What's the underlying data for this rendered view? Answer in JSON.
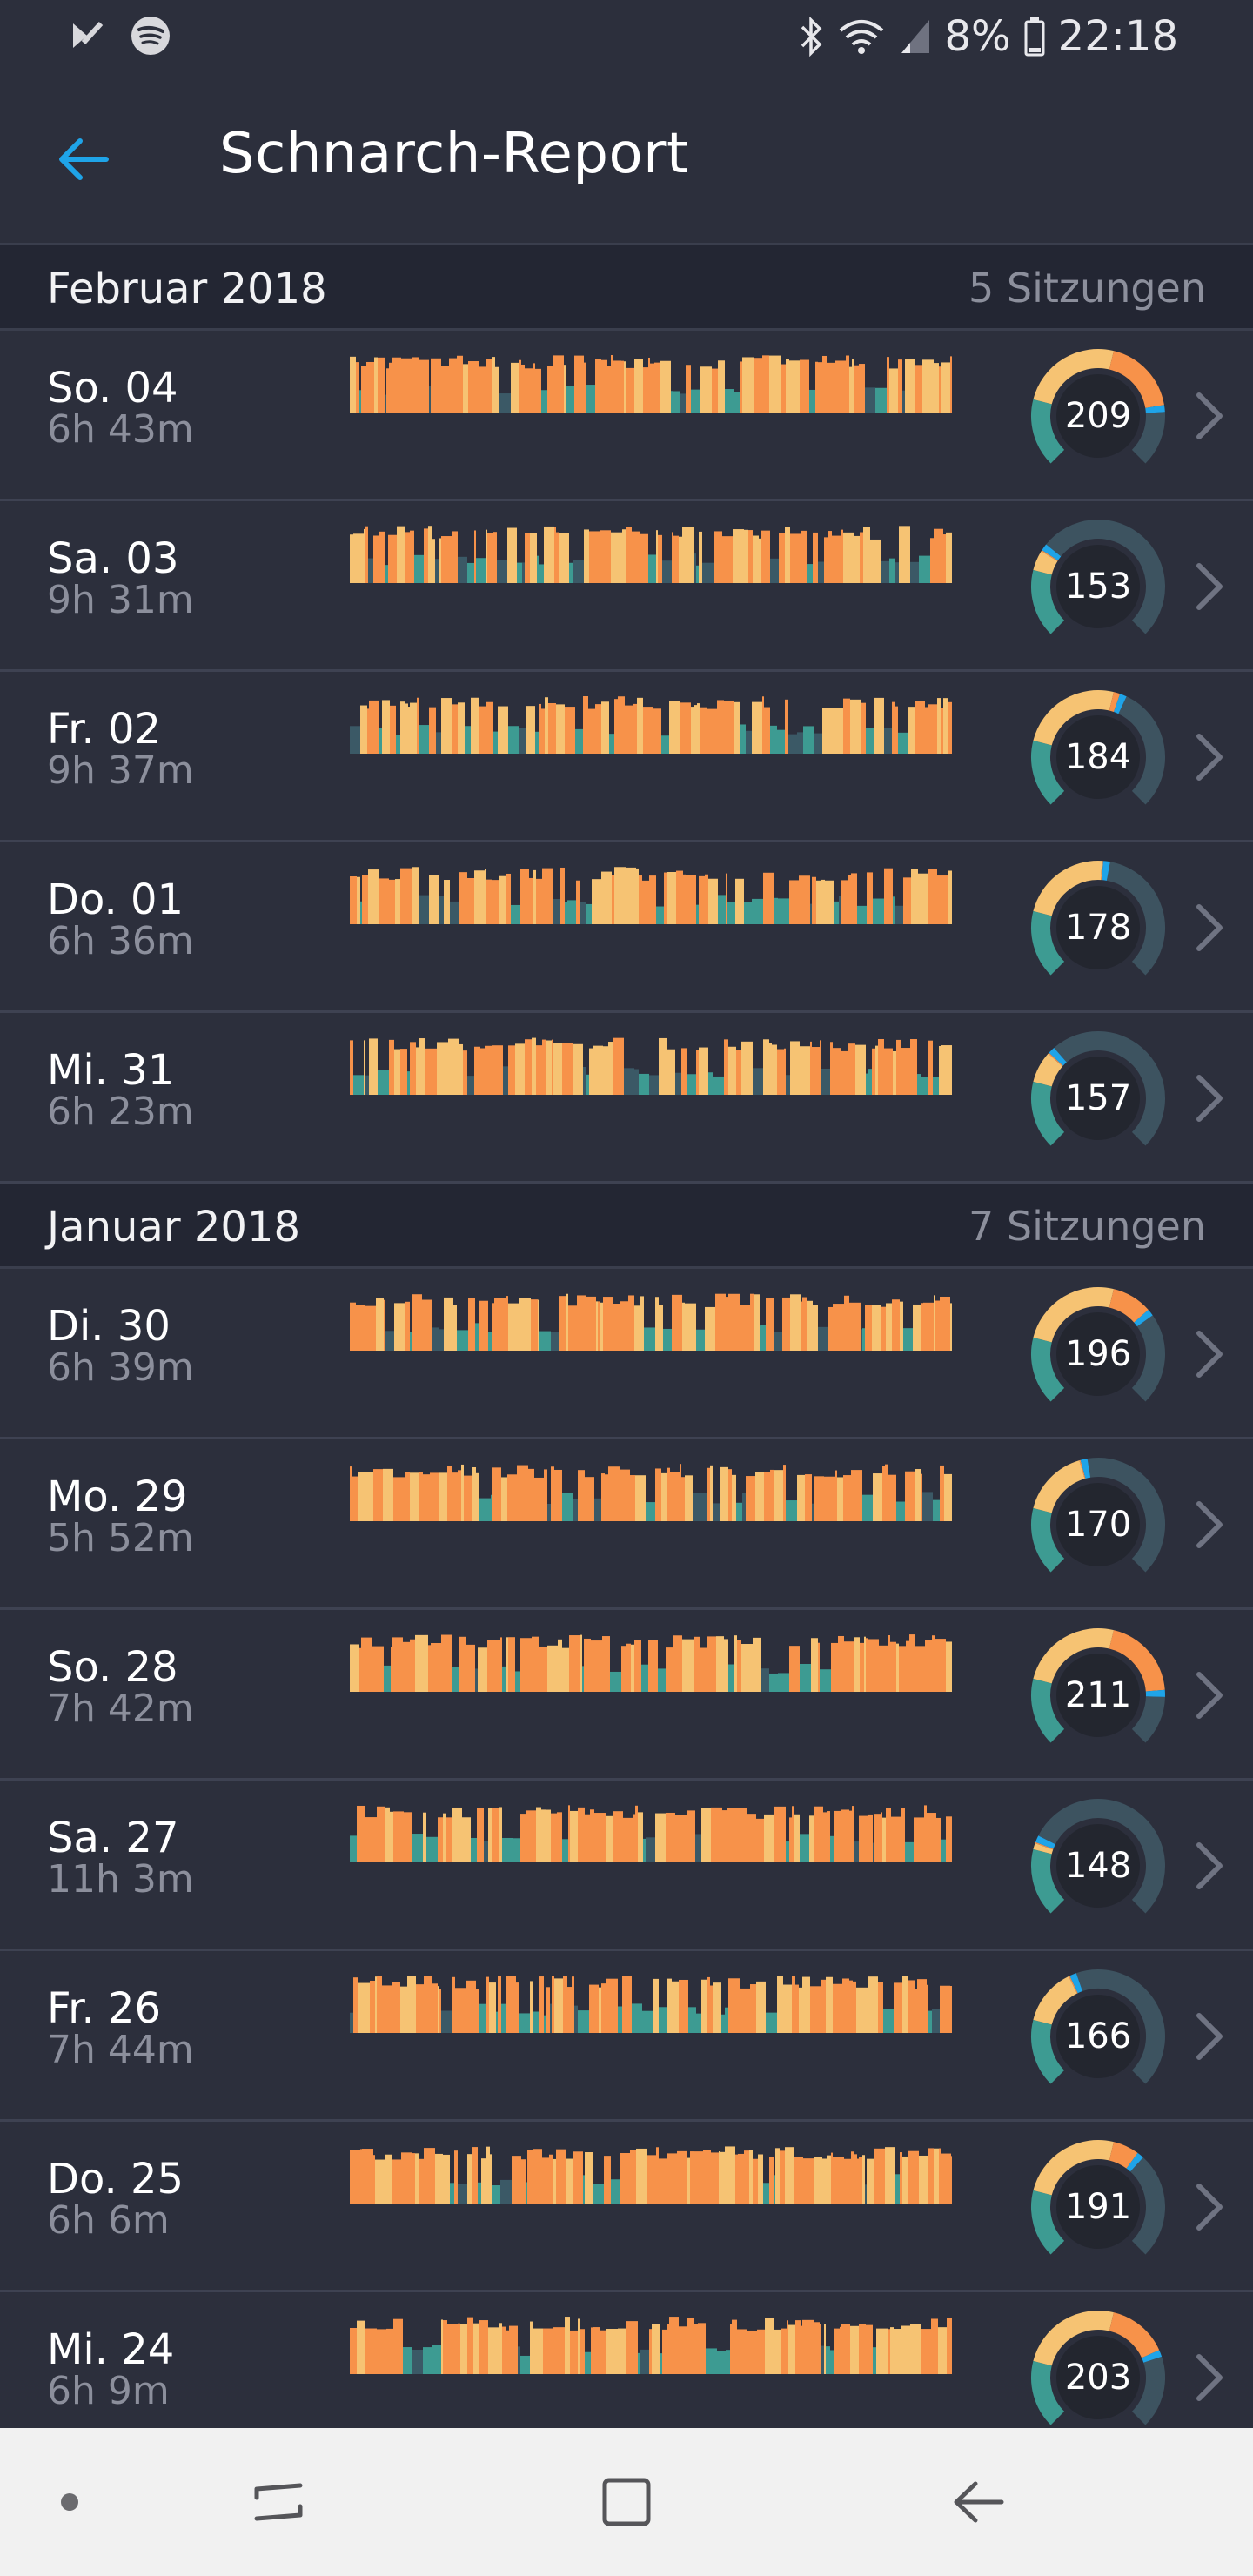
{
  "status_bar": {
    "battery": "8%",
    "time": "22:18",
    "left_icons": [
      "launcher-icon",
      "spotify-icon"
    ],
    "right_icons": [
      "bluetooth-icon",
      "wifi-icon",
      "signal-icon",
      "battery-icon"
    ]
  },
  "app_bar": {
    "title": "Schnarch-Report",
    "back_icon": "arrow-left-icon"
  },
  "colors": {
    "background": "#2c2f3c",
    "section_background": "#232633",
    "accent": "#1fa4e8",
    "snore_loud": "#f7924a",
    "snore_light": "#f6c373",
    "quiet": "#3d9b92",
    "silent": "#3b5966",
    "muted_text": "#8c8f9c"
  },
  "sections": [
    {
      "month": "Februar 2018",
      "count": "5 Sitzungen",
      "sessions": [
        {
          "day": "So. 04",
          "duration": "6h 43m",
          "score": "209"
        },
        {
          "day": "Sa. 03",
          "duration": "9h 31m",
          "score": "153"
        },
        {
          "day": "Fr. 02",
          "duration": "9h 37m",
          "score": "184"
        },
        {
          "day": "Do. 01",
          "duration": "6h 36m",
          "score": "178"
        },
        {
          "day": "Mi. 31",
          "duration": "6h 23m",
          "score": "157"
        }
      ]
    },
    {
      "month": "Januar 2018",
      "count": "7 Sitzungen",
      "sessions": [
        {
          "day": "Di. 30",
          "duration": "6h 39m",
          "score": "196"
        },
        {
          "day": "Mo. 29",
          "duration": "5h 52m",
          "score": "170"
        },
        {
          "day": "So. 28",
          "duration": "7h 42m",
          "score": "211"
        },
        {
          "day": "Sa. 27",
          "duration": "11h 3m",
          "score": "148"
        },
        {
          "day": "Fr. 26",
          "duration": "7h 44m",
          "score": "166"
        },
        {
          "day": "Do. 25",
          "duration": "6h 6m",
          "score": "191"
        },
        {
          "day": "Mi. 24",
          "duration": "6h 9m",
          "score": "203"
        }
      ]
    }
  ],
  "nav_bar": {
    "items": [
      "dot-icon",
      "recent-apps-icon",
      "home-icon",
      "back-icon"
    ]
  }
}
